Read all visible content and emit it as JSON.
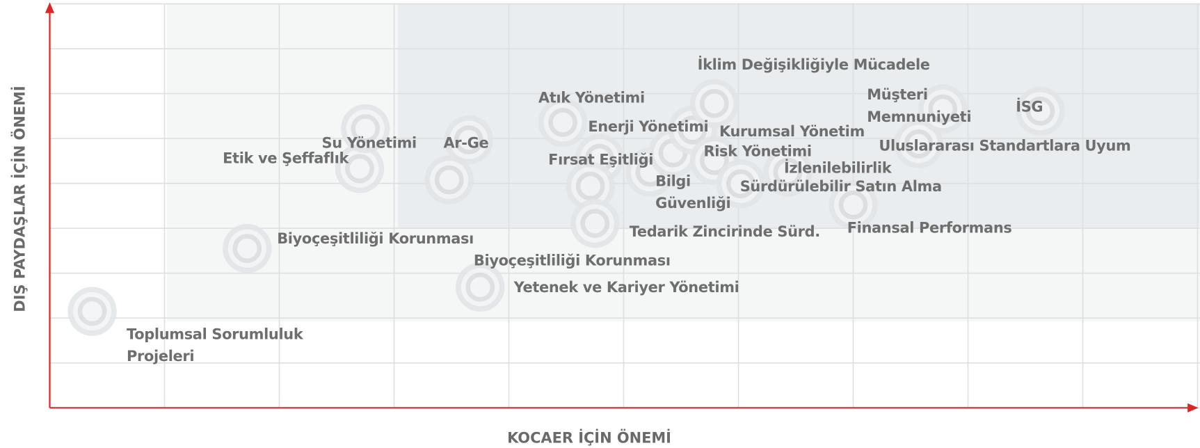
{
  "chart_data": {
    "type": "scatter",
    "x_label": "KOCAER İÇİN ÖNEMİ",
    "y_label": "DIŞ PAYDAŞLAR İÇİN ÖNEMİ",
    "xlim": [
      0,
      10
    ],
    "ylim": [
      0,
      9
    ],
    "xticks": [
      0,
      1,
      2,
      3,
      4,
      5,
      6,
      7,
      8,
      9,
      10
    ],
    "yticks": [
      0,
      1,
      2,
      3,
      4,
      5,
      6,
      7,
      8,
      9
    ],
    "grid": true,
    "points": [
      {
        "label": "Toplumsal Sorumluluk\nProjeleri",
        "x": 0.37,
        "y": 2.15
      },
      {
        "label": "Biyoçeşitliliği Korunması",
        "x": 1.72,
        "y": 3.55
      },
      {
        "label": "Etik ve Şeffaflık",
        "x": 2.7,
        "y": 5.33
      },
      {
        "label": "Su Yönetimi",
        "x": 2.75,
        "y": 6.22
      },
      {
        "label": "Ar-Ge",
        "x": 3.65,
        "y": 5.97
      },
      {
        "label": "Biyoçeşitliliği Korunması",
        "x": 3.48,
        "y": 5.08
      },
      {
        "label": "Yetenek ve Kariyer Yönetimi",
        "x": 3.75,
        "y": 2.69
      },
      {
        "label": "Atık Yönetimi",
        "x": 4.47,
        "y": 6.36
      },
      {
        "label": "Enerji Yönetimi",
        "x": 4.79,
        "y": 5.56
      },
      {
        "label": "Fırsat Eşitliği",
        "x": 4.71,
        "y": 4.94
      },
      {
        "label": "Tedarik Zincirinde Sürd.",
        "x": 4.75,
        "y": 4.11
      },
      {
        "label": "Bilgi\nGüvenliği",
        "x": 5.23,
        "y": 5.25
      },
      {
        "label": null,
        "x": 5.43,
        "y": 5.68
      },
      {
        "label": "Kurumsal Yönetim",
        "x": 5.6,
        "y": 6.19
      },
      {
        "label": "İklim Değişikliğiyle Mücadele",
        "x": 5.79,
        "y": 6.78
      },
      {
        "label": "Risk Yönetimi",
        "x": 5.79,
        "y": 5.51
      },
      {
        "label": "Sürdürülebilir Satın Alma",
        "x": 6.02,
        "y": 4.99
      },
      {
        "label": "İzlenilebilirlik",
        "x": 6.43,
        "y": 5.25
      },
      {
        "label": "Finansal Performans",
        "x": 7.0,
        "y": 4.52
      },
      {
        "label": "Uluslararası Standartlara Uyum",
        "x": 7.57,
        "y": 5.88
      },
      {
        "label": "Müşteri\nMemnuniyeti",
        "x": 7.78,
        "y": 6.66
      },
      {
        "label": "İSG",
        "x": 8.63,
        "y": 6.61
      }
    ]
  }
}
